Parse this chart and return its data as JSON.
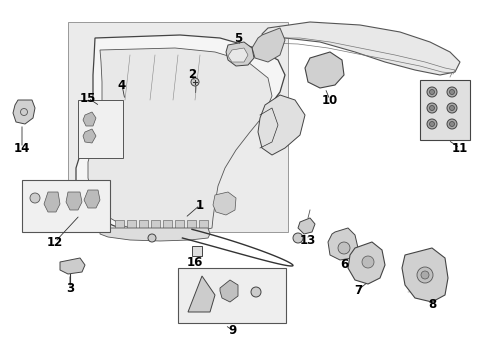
{
  "bg_color": "#ffffff",
  "draw_color": "#333333",
  "light_fill": "#e8e8e8",
  "medium_fill": "#d8d8d8",
  "fig_w": 4.9,
  "fig_h": 3.6,
  "dpi": 100
}
